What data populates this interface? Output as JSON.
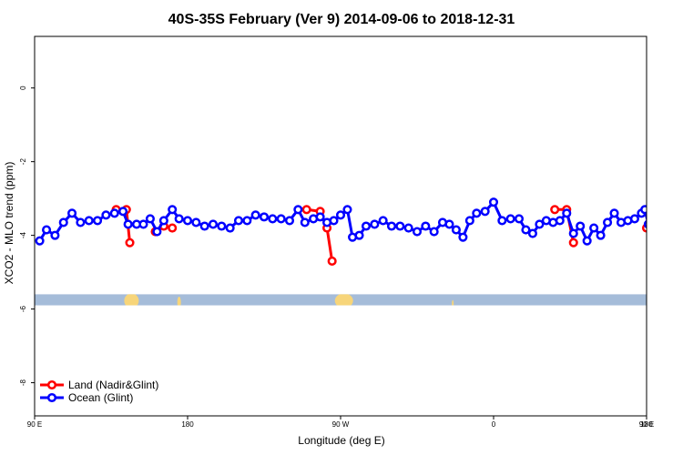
{
  "chart_data": {
    "type": "line",
    "title": "40S-35S February (Ver 9)   2014-09-06 to 2018-12-31",
    "xlabel": "Longitude (deg E)",
    "ylabel": "XCO2 - MLO trend (ppm)",
    "xlim": [
      90,
      450
    ],
    "ylim": [
      -8.9,
      1.4
    ],
    "x_ticks": [
      {
        "value": 90,
        "label": "90 E"
      },
      {
        "value": 180,
        "label": "180"
      },
      {
        "value": 270,
        "label": "90 W"
      },
      {
        "value": 360,
        "label": "0"
      },
      {
        "value": 450,
        "label": "90 E"
      }
    ],
    "x_ticks_right": [
      {
        "value": 450,
        "label": "180"
      }
    ],
    "y_ticks": [
      {
        "value": 0,
        "label": "0"
      },
      {
        "value": -2,
        "label": "-2"
      },
      {
        "value": -4,
        "label": "-4"
      },
      {
        "value": -6,
        "label": "-6"
      },
      {
        "value": -8,
        "label": "-8"
      }
    ],
    "legend_position": "bottom-left",
    "map_strip": {
      "y_top": -5.6,
      "y_bottom": -5.9,
      "ocean_color": "#a5bcd9",
      "land_color": "#f7d57a"
    },
    "series": [
      {
        "name": "Land (Nadir&Glint)",
        "color": "#ff0000",
        "segments": [
          [
            [
              138,
              -3.3
            ],
            [
              144,
              -3.3
            ],
            [
              146,
              -4.2
            ]
          ],
          [
            [
              161,
              -3.9
            ],
            [
              166,
              -3.75
            ],
            [
              171,
              -3.8
            ]
          ],
          [
            [
              250,
              -3.3
            ],
            [
              258,
              -3.35
            ],
            [
              262,
              -3.8
            ],
            [
              265,
              -4.7
            ]
          ],
          [
            [
              396,
              -3.3
            ],
            [
              403,
              -3.3
            ],
            [
              407,
              -4.2
            ]
          ],
          [
            [
              450,
              -3.8
            ]
          ]
        ]
      },
      {
        "name": "Ocean (Glint)",
        "color": "#0000ff",
        "points": [
          [
            93,
            -4.15
          ],
          [
            97,
            -3.85
          ],
          [
            102,
            -4.0
          ],
          [
            107,
            -3.65
          ],
          [
            112,
            -3.4
          ],
          [
            117,
            -3.65
          ],
          [
            122,
            -3.6
          ],
          [
            127,
            -3.6
          ],
          [
            132,
            -3.45
          ],
          [
            137,
            -3.4
          ],
          [
            142,
            -3.35
          ],
          [
            145,
            -3.7
          ],
          [
            150,
            -3.7
          ],
          [
            154,
            -3.7
          ],
          [
            158,
            -3.55
          ],
          [
            162,
            -3.9
          ],
          [
            166,
            -3.6
          ],
          [
            171,
            -3.3
          ],
          [
            175,
            -3.55
          ],
          [
            180,
            -3.6
          ],
          [
            185,
            -3.65
          ],
          [
            190,
            -3.75
          ],
          [
            195,
            -3.7
          ],
          [
            200,
            -3.75
          ],
          [
            205,
            -3.8
          ],
          [
            210,
            -3.6
          ],
          [
            215,
            -3.6
          ],
          [
            220,
            -3.45
          ],
          [
            225,
            -3.5
          ],
          [
            230,
            -3.55
          ],
          [
            235,
            -3.55
          ],
          [
            240,
            -3.6
          ],
          [
            245,
            -3.3
          ],
          [
            249,
            -3.65
          ],
          [
            254,
            -3.55
          ],
          [
            258,
            -3.5
          ],
          [
            262,
            -3.65
          ],
          [
            266,
            -3.6
          ],
          [
            270,
            -3.45
          ],
          [
            274,
            -3.3
          ],
          [
            277,
            -4.05
          ],
          [
            281,
            -4.0
          ],
          [
            285,
            -3.75
          ],
          [
            290,
            -3.7
          ],
          [
            295,
            -3.6
          ],
          [
            300,
            -3.75
          ],
          [
            305,
            -3.75
          ],
          [
            310,
            -3.8
          ],
          [
            315,
            -3.9
          ],
          [
            320,
            -3.75
          ],
          [
            325,
            -3.9
          ],
          [
            330,
            -3.65
          ],
          [
            334,
            -3.7
          ],
          [
            338,
            -3.85
          ],
          [
            342,
            -4.05
          ],
          [
            346,
            -3.6
          ],
          [
            350,
            -3.4
          ],
          [
            355,
            -3.35
          ],
          [
            360,
            -3.1
          ],
          [
            365,
            -3.6
          ],
          [
            370,
            -3.55
          ],
          [
            375,
            -3.55
          ],
          [
            379,
            -3.85
          ],
          [
            383,
            -3.95
          ],
          [
            387,
            -3.7
          ],
          [
            391,
            -3.6
          ],
          [
            395,
            -3.65
          ],
          [
            399,
            -3.6
          ],
          [
            403,
            -3.4
          ],
          [
            407,
            -3.95
          ],
          [
            411,
            -3.75
          ],
          [
            415,
            -4.15
          ],
          [
            419,
            -3.8
          ],
          [
            423,
            -4.0
          ],
          [
            427,
            -3.65
          ],
          [
            431,
            -3.4
          ],
          [
            435,
            -3.65
          ],
          [
            439,
            -3.6
          ],
          [
            443,
            -3.55
          ],
          [
            447,
            -3.4
          ],
          [
            449,
            -3.3
          ],
          [
            451,
            -3.7
          ],
          [
            455,
            -3.7
          ],
          [
            459,
            -3.65
          ],
          [
            463,
            -3.55
          ],
          [
            467,
            -3.9
          ],
          [
            471,
            -3.6
          ],
          [
            475,
            -3.3
          ]
        ]
      }
    ]
  }
}
